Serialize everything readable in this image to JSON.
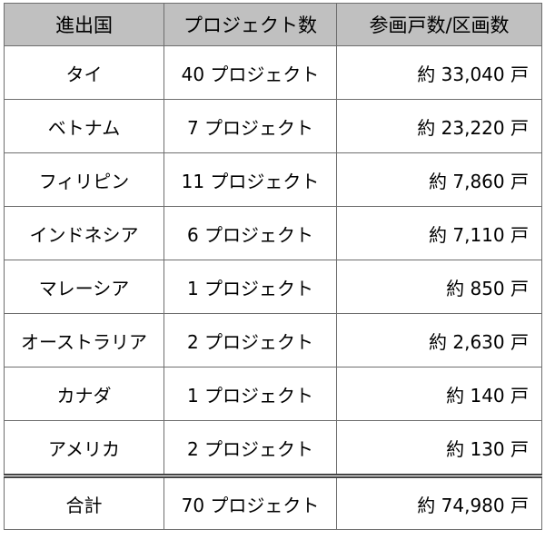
{
  "table": {
    "headers": [
      "進出国",
      "プロジェクト数",
      "参画戸数/区画数"
    ],
    "rows": [
      {
        "country": "タイ",
        "projects": "40 プロジェクト",
        "units": "約 33,040 戸"
      },
      {
        "country": "ベトナム",
        "projects": "7 プロジェクト",
        "units": "約 23,220 戸"
      },
      {
        "country": "フィリピン",
        "projects": "11 プロジェクト",
        "units": "約 7,860 戸"
      },
      {
        "country": "インドネシア",
        "projects": "6 プロジェクト",
        "units": "約 7,110 戸"
      },
      {
        "country": "マレーシア",
        "projects": "1 プロジェクト",
        "units": "約 850 戸"
      },
      {
        "country": "オーストラリア",
        "projects": "2 プロジェクト",
        "units": "約 2,630 戸"
      },
      {
        "country": "カナダ",
        "projects": "1 プロジェクト",
        "units": "約 140 戸"
      },
      {
        "country": "アメリカ",
        "projects": "2 プロジェクト",
        "units": "約 130 戸"
      }
    ],
    "total": {
      "country": "合計",
      "projects": "70 プロジェクト",
      "units": "約 74,980 戸"
    },
    "header_bg": "#c0c0c0"
  }
}
